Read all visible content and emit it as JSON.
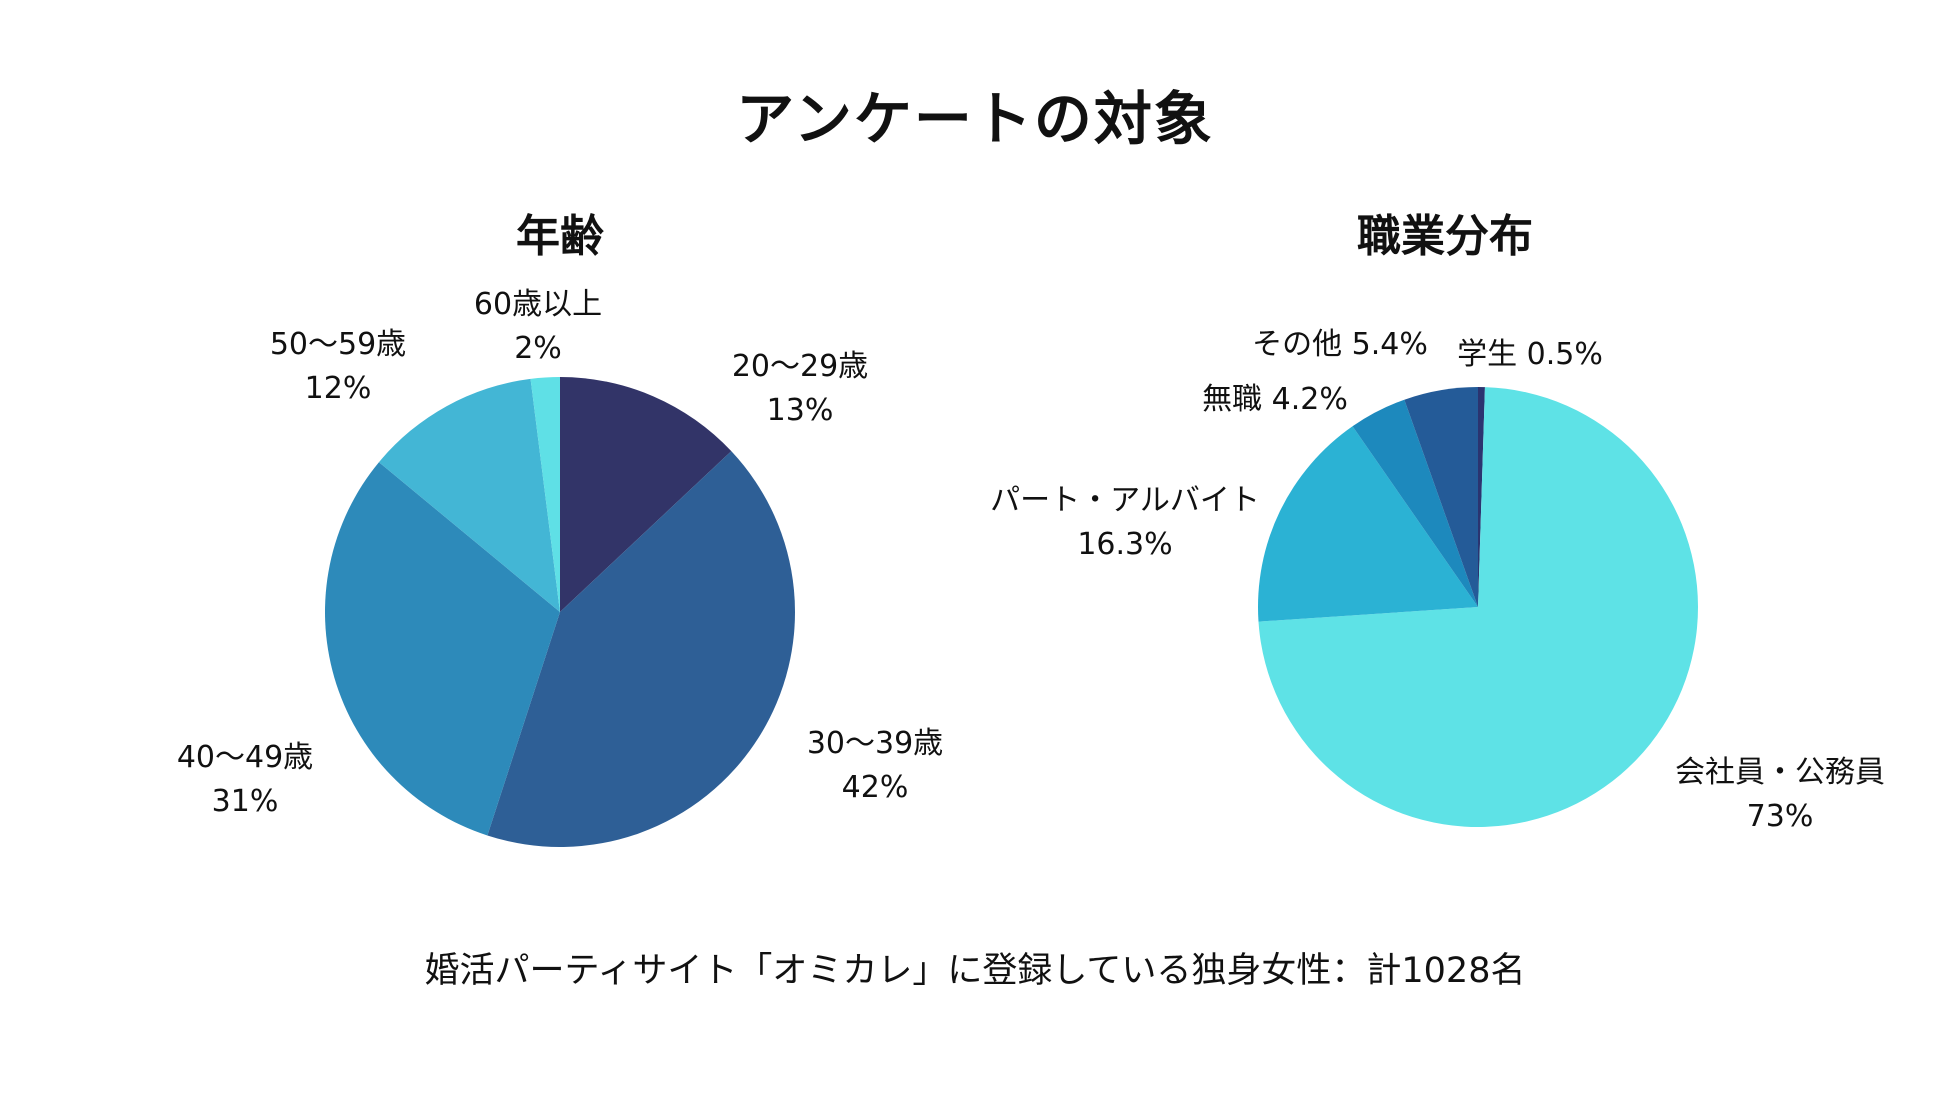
{
  "title": "アンケートの対象",
  "footnote": "婚活パーティサイト「オミカレ」に登録している独身女性：計1028名",
  "chart_data": [
    {
      "type": "pie",
      "title": "年齢",
      "slices": [
        {
          "name": "20〜29歳",
          "value": 13,
          "label": "13%",
          "color": "#323468"
        },
        {
          "name": "30〜39歳",
          "value": 42,
          "label": "42%",
          "color": "#2e5f96"
        },
        {
          "name": "40〜49歳",
          "value": 31,
          "label": "31%",
          "color": "#2d8aba"
        },
        {
          "name": "50〜59歳",
          "value": 12,
          "label": "12%",
          "color": "#43b6d5"
        },
        {
          "name": "60歳以上",
          "value": 2,
          "label": "2%",
          "color": "#5fe0e6"
        }
      ]
    },
    {
      "type": "pie",
      "title": "職業分布",
      "slices": [
        {
          "name": "学生",
          "value": 0.5,
          "label": "0.5%",
          "color": "#2b3470"
        },
        {
          "name": "会社員・公務員",
          "value": 73,
          "label": "73%",
          "color": "#5ee2e6"
        },
        {
          "name": "パート・アルバイト",
          "value": 16.3,
          "label": "16.3%",
          "color": "#2bb2d4"
        },
        {
          "name": "無職",
          "value": 4.2,
          "label": "4.2%",
          "color": "#1d89bd"
        },
        {
          "name": "その他",
          "value": 5.4,
          "label": "5.4%",
          "color": "#245b98"
        }
      ]
    }
  ]
}
